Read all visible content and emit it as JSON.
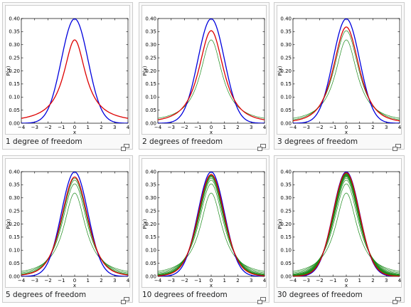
{
  "figures": [
    {
      "caption": "1 degree of freedom"
    },
    {
      "caption": "2 degrees of freedom"
    },
    {
      "caption": "3 degrees of freedom"
    },
    {
      "caption": "5 degrees of freedom"
    },
    {
      "caption": "10 degrees of freedom"
    },
    {
      "caption": "30 degrees of freedom"
    }
  ],
  "icons": {
    "enlarge": "enlarge-icon"
  },
  "colors": {
    "normal": "#0000dd",
    "current": "#dd0000",
    "previous": "#1a8a1a",
    "border": "#cccccc",
    "frame_bg": "#f9f9f9"
  },
  "chart_data": [
    {
      "type": "line",
      "title": "",
      "xlabel": "x",
      "ylabel": "P(x)",
      "xlim": [
        -4,
        4
      ],
      "ylim": [
        0,
        0.4
      ],
      "x_ticks": [
        "−4",
        "−3",
        "−2",
        "−1",
        "0",
        "1",
        "2",
        "3",
        "4"
      ],
      "y_ticks": [
        "0.00",
        "0.05",
        "0.10",
        "0.15",
        "0.20",
        "0.25",
        "0.30",
        "0.35",
        "0.40"
      ],
      "series": [
        {
          "name": "",
          "distribution": "normal",
          "color": "blue"
        },
        {
          "name": "",
          "distribution": "student-t",
          "df": 1,
          "color": "red"
        }
      ]
    },
    {
      "type": "line",
      "title": "",
      "xlabel": "x",
      "ylabel": "P(x)",
      "xlim": [
        -4,
        4
      ],
      "ylim": [
        0,
        0.4
      ],
      "x_ticks": [
        "−4",
        "−3",
        "−2",
        "−1",
        "0",
        "1",
        "2",
        "3",
        "4"
      ],
      "y_ticks": [
        "0.00",
        "0.05",
        "0.10",
        "0.15",
        "0.20",
        "0.25",
        "0.30",
        "0.35",
        "0.40"
      ],
      "series": [
        {
          "name": "",
          "distribution": "normal",
          "color": "blue"
        },
        {
          "name": "",
          "distribution": "student-t",
          "df": 2,
          "color": "red"
        },
        {
          "name": "",
          "distribution": "student-t",
          "df": 1,
          "color": "green"
        }
      ]
    },
    {
      "type": "line",
      "title": "",
      "xlabel": "x",
      "ylabel": "P(x)",
      "xlim": [
        -4,
        4
      ],
      "ylim": [
        0,
        0.4
      ],
      "x_ticks": [
        "−4",
        "−3",
        "−2",
        "−1",
        "0",
        "1",
        "2",
        "3",
        "4"
      ],
      "y_ticks": [
        "0.00",
        "0.05",
        "0.10",
        "0.15",
        "0.20",
        "0.25",
        "0.30",
        "0.35",
        "0.40"
      ],
      "series": [
        {
          "name": "",
          "distribution": "normal",
          "color": "blue"
        },
        {
          "name": "",
          "distribution": "student-t",
          "df": 3,
          "color": "red"
        },
        {
          "name": "",
          "distribution": "student-t",
          "df": 1,
          "color": "green"
        },
        {
          "name": "",
          "distribution": "student-t",
          "df": 2,
          "color": "green"
        }
      ]
    },
    {
      "type": "line",
      "title": "",
      "xlabel": "x",
      "ylabel": "P(x)",
      "xlim": [
        -4,
        4
      ],
      "ylim": [
        0,
        0.4
      ],
      "x_ticks": [
        "−4",
        "−3",
        "−2",
        "−1",
        "0",
        "1",
        "2",
        "3",
        "4"
      ],
      "y_ticks": [
        "0.00",
        "0.05",
        "0.10",
        "0.15",
        "0.20",
        "0.25",
        "0.30",
        "0.35",
        "0.40"
      ],
      "series": [
        {
          "name": "",
          "distribution": "normal",
          "color": "blue"
        },
        {
          "name": "",
          "distribution": "student-t",
          "df": 5,
          "color": "red"
        },
        {
          "name": "",
          "distribution": "student-t",
          "df": 1,
          "color": "green"
        },
        {
          "name": "",
          "distribution": "student-t",
          "df": 2,
          "color": "green"
        },
        {
          "name": "",
          "distribution": "student-t",
          "df": 3,
          "color": "green"
        },
        {
          "name": "",
          "distribution": "student-t",
          "df": 4,
          "color": "green"
        }
      ]
    },
    {
      "type": "line",
      "title": "",
      "xlabel": "x",
      "ylabel": "P(x)",
      "xlim": [
        -4,
        4
      ],
      "ylim": [
        0,
        0.4
      ],
      "x_ticks": [
        "−4",
        "−3",
        "−2",
        "−1",
        "0",
        "1",
        "2",
        "3",
        "4"
      ],
      "y_ticks": [
        "0.00",
        "0.05",
        "0.10",
        "0.15",
        "0.20",
        "0.25",
        "0.30",
        "0.35",
        "0.40"
      ],
      "series": [
        {
          "name": "",
          "distribution": "normal",
          "color": "blue"
        },
        {
          "name": "",
          "distribution": "student-t",
          "df": 10,
          "color": "red"
        },
        {
          "name": "",
          "distribution": "student-t",
          "df": 1,
          "color": "green"
        },
        {
          "name": "",
          "distribution": "student-t",
          "df": 2,
          "color": "green"
        },
        {
          "name": "",
          "distribution": "student-t",
          "df": 3,
          "color": "green"
        },
        {
          "name": "",
          "distribution": "student-t",
          "df": 4,
          "color": "green"
        },
        {
          "name": "",
          "distribution": "student-t",
          "df": 5,
          "color": "green"
        },
        {
          "name": "",
          "distribution": "student-t",
          "df": 6,
          "color": "green"
        },
        {
          "name": "",
          "distribution": "student-t",
          "df": 7,
          "color": "green"
        },
        {
          "name": "",
          "distribution": "student-t",
          "df": 8,
          "color": "green"
        },
        {
          "name": "",
          "distribution": "student-t",
          "df": 9,
          "color": "green"
        }
      ]
    },
    {
      "type": "line",
      "title": "",
      "xlabel": "x",
      "ylabel": "P(x)",
      "xlim": [
        -4,
        4
      ],
      "ylim": [
        0,
        0.4
      ],
      "x_ticks": [
        "−4",
        "−3",
        "−2",
        "−1",
        "0",
        "1",
        "2",
        "3",
        "4"
      ],
      "y_ticks": [
        "0.00",
        "0.05",
        "0.10",
        "0.15",
        "0.20",
        "0.25",
        "0.30",
        "0.35",
        "0.40"
      ],
      "series": [
        {
          "name": "",
          "distribution": "normal",
          "color": "blue"
        },
        {
          "name": "",
          "distribution": "student-t",
          "df": 30,
          "color": "red"
        },
        {
          "name": "",
          "distribution": "student-t",
          "df": 1,
          "color": "green"
        },
        {
          "name": "",
          "distribution": "student-t",
          "df": 2,
          "color": "green"
        },
        {
          "name": "",
          "distribution": "student-t",
          "df": 3,
          "color": "green"
        },
        {
          "name": "",
          "distribution": "student-t",
          "df": 4,
          "color": "green"
        },
        {
          "name": "",
          "distribution": "student-t",
          "df": 5,
          "color": "green"
        },
        {
          "name": "",
          "distribution": "student-t",
          "df": 6,
          "color": "green"
        },
        {
          "name": "",
          "distribution": "student-t",
          "df": 7,
          "color": "green"
        },
        {
          "name": "",
          "distribution": "student-t",
          "df": 8,
          "color": "green"
        },
        {
          "name": "",
          "distribution": "student-t",
          "df": 9,
          "color": "green"
        },
        {
          "name": "",
          "distribution": "student-t",
          "df": 10,
          "color": "green"
        },
        {
          "name": "",
          "distribution": "student-t",
          "df": 12,
          "color": "green"
        },
        {
          "name": "",
          "distribution": "student-t",
          "df": 15,
          "color": "green"
        },
        {
          "name": "",
          "distribution": "student-t",
          "df": 20,
          "color": "green"
        },
        {
          "name": "",
          "distribution": "student-t",
          "df": 25,
          "color": "green"
        },
        {
          "name": "",
          "distribution": "student-t",
          "df": 29,
          "color": "green"
        }
      ]
    }
  ]
}
